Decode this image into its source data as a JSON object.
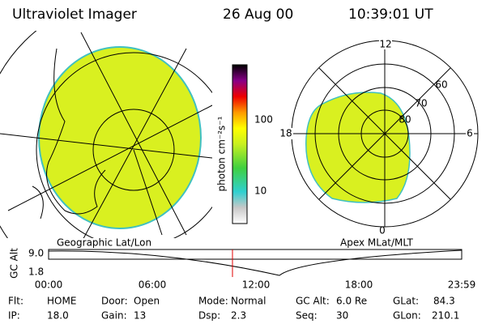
{
  "header": {
    "instrument": "Ultraviolet Imager",
    "date": "26 Aug 00",
    "time": "10:39:01 UT"
  },
  "left_panel": {
    "label": "Geographic Lat/Lon"
  },
  "colorbar": {
    "unit_label": "photon cm⁻²s⁻¹",
    "ticks": [
      "100",
      "10"
    ]
  },
  "right_panel": {
    "label": "Apex MLat/MLT",
    "mlt_labels": {
      "top": "12",
      "left": "18",
      "right": "6",
      "bottom": "0"
    },
    "lat_labels": [
      "60",
      "70",
      "80"
    ]
  },
  "altitude_plot": {
    "axis_label": "GC Alt",
    "ticks": [
      "9.0",
      "1.8"
    ],
    "time_ticks": [
      "00:00",
      "06:00",
      "12:00",
      "18:00",
      "23:59"
    ]
  },
  "footer": {
    "rows": [
      [
        [
          "Flt:",
          "HOME"
        ],
        [
          "Door:",
          "Open"
        ],
        [
          "Mode:",
          "Normal"
        ],
        [
          "GC Alt:",
          "6.0 Re"
        ],
        [
          "GLat:",
          "84.3"
        ]
      ],
      [
        [
          "IP:",
          "18.0"
        ],
        [
          "Gain:",
          "13"
        ],
        [
          "Dsp:",
          "2.3"
        ],
        [
          "Seq:",
          "30"
        ],
        [
          "GLon:",
          "210.1"
        ]
      ]
    ]
  }
}
